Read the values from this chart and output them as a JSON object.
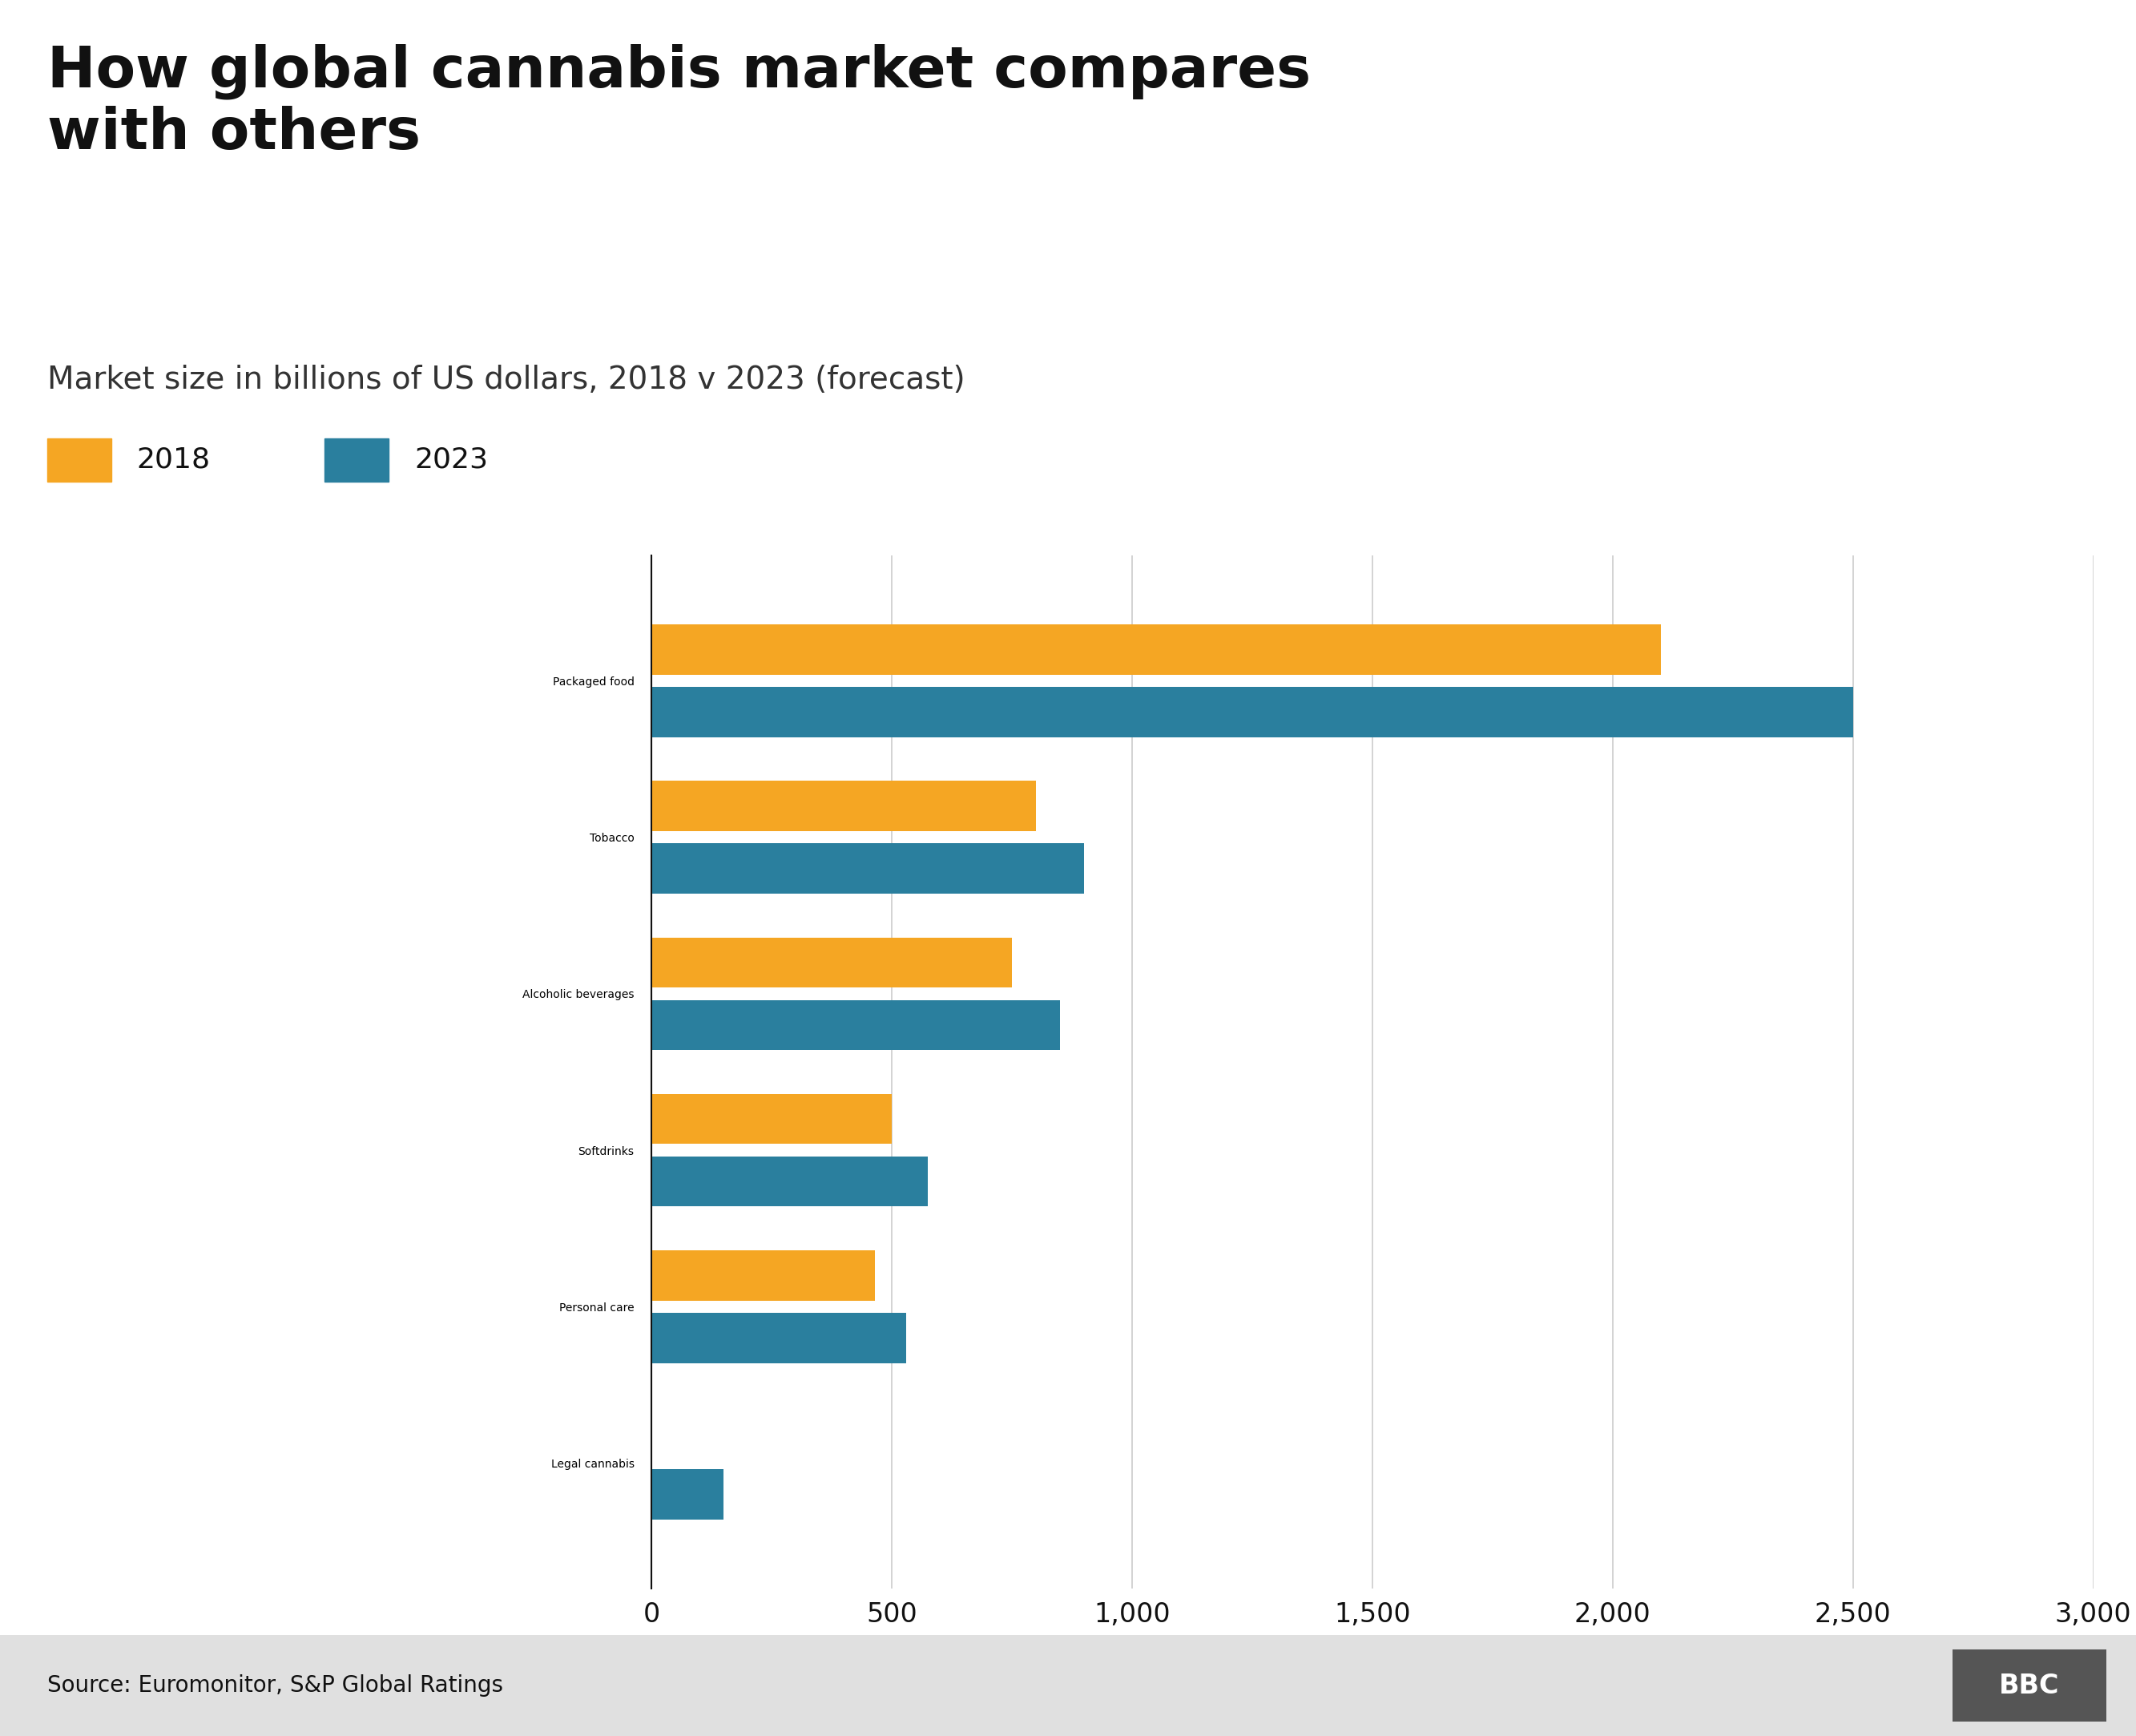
{
  "title": "How global cannabis market compares\nwith others",
  "subtitle": "Market size in billions of US dollars, 2018 v 2023 (forecast)",
  "source": "Source: Euromonitor, S&P Global Ratings",
  "categories": [
    "Packaged food",
    "Tobacco",
    "Alcoholic beverages",
    "Softdrinks",
    "Personal care",
    "Legal cannabis"
  ],
  "values_2018": [
    2100,
    800,
    750,
    500,
    465,
    0
  ],
  "values_2023": [
    2500,
    900,
    850,
    575,
    530,
    150
  ],
  "color_2018": "#F5A623",
  "color_2023": "#2A7F9E",
  "background_color": "#FFFFFF",
  "footer_bg": "#E0E0E0",
  "footer_text_color": "#111111",
  "xlim": [
    0,
    3000
  ],
  "xticks": [
    0,
    500,
    1000,
    1500,
    2000,
    2500,
    3000
  ],
  "xtick_labels": [
    "0",
    "500",
    "1,000",
    "1,500",
    "2,000",
    "2,500",
    "3,000"
  ],
  "legend_2018": "2018",
  "legend_2023": "2023",
  "bar_height": 0.32,
  "bar_spacing": 0.08
}
